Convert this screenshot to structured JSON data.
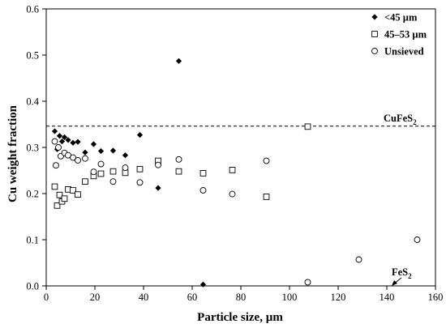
{
  "chart_data": {
    "type": "scatter",
    "xlabel": "Particle size, µm",
    "ylabel": "Cu weight fraction",
    "xlim": [
      0,
      160
    ],
    "ylim": [
      0,
      0.6
    ],
    "x_ticks": [
      0,
      20,
      40,
      60,
      80,
      100,
      120,
      140,
      160
    ],
    "y_ticks": [
      0.0,
      0.1,
      0.2,
      0.3,
      0.4,
      0.5,
      0.6
    ],
    "x_tick_labels": [
      "0",
      "20",
      "40",
      "60",
      "80",
      "100",
      "120",
      "140",
      "160"
    ],
    "y_tick_labels": [
      "0.0",
      "0.1",
      "0.2",
      "0.3",
      "0.4",
      "0.5",
      "0.6"
    ],
    "grid": false,
    "legend_position": "top-right",
    "reference_line": {
      "y": 0.346,
      "style": "dashed",
      "label_main": "CuFeS",
      "label_sub": "2"
    },
    "annotation": {
      "label_main": "FeS",
      "label_sub": "2",
      "x": 142,
      "y": 0.0
    },
    "series": [
      {
        "name": "<45 µm",
        "marker": "diamond",
        "color": "#000000",
        "x": [
          3.5,
          4.5,
          5.5,
          6.5,
          7.5,
          9,
          11,
          13,
          16,
          19.5,
          22.5,
          27.5,
          32.5,
          38.5,
          46,
          54.5,
          64.5
        ],
        "y": [
          0.335,
          0.296,
          0.325,
          0.313,
          0.322,
          0.316,
          0.31,
          0.312,
          0.289,
          0.307,
          0.292,
          0.293,
          0.283,
          0.327,
          0.212,
          0.487,
          0.003
        ]
      },
      {
        "name": "45–53 µm",
        "marker": "square",
        "color": "#000000",
        "x": [
          3.5,
          4.5,
          5.5,
          6.5,
          7.5,
          9,
          11,
          13,
          16,
          19.5,
          22.5,
          27.5,
          32.5,
          38.5,
          46,
          54.5,
          64.5,
          76.5,
          90.5,
          107.5
        ],
        "y": [
          0.215,
          0.174,
          0.197,
          0.183,
          0.189,
          0.209,
          0.207,
          0.198,
          0.226,
          0.238,
          0.243,
          0.248,
          0.245,
          0.253,
          0.271,
          0.248,
          0.244,
          0.251,
          0.193,
          0.345
        ]
      },
      {
        "name": "Unsieved",
        "marker": "circle",
        "color": "#000000",
        "x": [
          3.5,
          4,
          5,
          6,
          7.5,
          9,
          11,
          13,
          16,
          19.5,
          22.5,
          27.5,
          32.5,
          38.5,
          46,
          54.5,
          64.5,
          76.5,
          90.5,
          107.5,
          128.5,
          152.5
        ],
        "y": [
          0.313,
          0.261,
          0.3,
          0.281,
          0.288,
          0.283,
          0.278,
          0.272,
          0.276,
          0.247,
          0.264,
          0.226,
          0.256,
          0.224,
          0.262,
          0.274,
          0.207,
          0.199,
          0.271,
          0.008,
          0.057,
          0.1
        ]
      }
    ]
  }
}
